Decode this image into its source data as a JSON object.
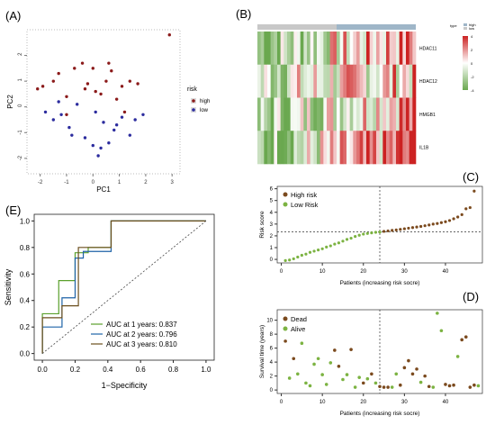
{
  "panel_labels": {
    "a": "(A)",
    "b": "(B)",
    "c": "(C)",
    "d": "(D)",
    "e": "(E)"
  },
  "chart_data": [
    {
      "panel": "(A)",
      "type": "scatter",
      "xlabel": "PC1",
      "ylabel": "PC2",
      "x_ticks": [
        "-2",
        "-1",
        "0",
        "1",
        "2",
        "3"
      ],
      "y_ticks": [
        "-2",
        "-1",
        "0",
        "1",
        "2"
      ],
      "xlim": [
        -2.5,
        3.3
      ],
      "ylim": [
        -2.6,
        3.0
      ],
      "legend": {
        "title": "risk",
        "placement": "right"
      },
      "series": [
        {
          "name": "high",
          "color": "#8b1a1a",
          "x": [
            -2.1,
            -1.9,
            -1.5,
            -1.3,
            -1.0,
            -0.7,
            -0.4,
            -0.2,
            0.0,
            0.3,
            0.5,
            0.7,
            0.9,
            1.1,
            1.4,
            1.7,
            2.9,
            -1.0,
            0.1,
            0.6,
            -0.3,
            1.2
          ],
          "y": [
            0.7,
            0.8,
            1.0,
            1.3,
            0.4,
            1.5,
            1.7,
            0.9,
            1.5,
            0.5,
            1.0,
            1.4,
            0.3,
            0.8,
            1.0,
            0.9,
            2.8,
            -0.3,
            0.6,
            1.7,
            0.7,
            -0.2
          ]
        },
        {
          "name": "low",
          "color": "#2c2c9e",
          "x": [
            -1.8,
            -1.5,
            -1.2,
            -0.9,
            -0.6,
            -0.3,
            0.0,
            0.2,
            0.4,
            0.6,
            0.8,
            1.1,
            1.4,
            1.9,
            -0.8,
            0.3,
            0.9,
            -1.3,
            0.1,
            1.6
          ],
          "y": [
            -0.2,
            -0.5,
            -0.3,
            -0.8,
            0.1,
            -1.2,
            -1.5,
            -1.9,
            -0.6,
            -1.4,
            -0.9,
            -0.4,
            -1.1,
            -0.3,
            -1.1,
            -1.6,
            -0.7,
            0.2,
            -0.2,
            -0.5
          ]
        }
      ]
    },
    {
      "panel": "(B)",
      "type": "heatmap",
      "rows": [
        "HDAC11",
        "HDAC12",
        "HMGB1",
        "IL1B"
      ],
      "legend_labels": [
        "type",
        "high",
        "low"
      ],
      "color_scale": [
        "#6aa84f",
        "#ffffff",
        "#cc2222"
      ],
      "scale_ticks": [
        "4",
        "2",
        "0",
        "-2",
        "-4"
      ]
    },
    {
      "panel": "(C)",
      "type": "scatter",
      "xlabel": "Patients (increasing risk socre)",
      "ylabel": "Risk score",
      "x_ticks": [
        "0",
        "10",
        "20",
        "30",
        "40"
      ],
      "y_ticks": [
        "0",
        "1",
        "2",
        "3",
        "4",
        "5",
        "6"
      ],
      "xlim": [
        -1,
        49
      ],
      "ylim": [
        -0.3,
        6.2
      ],
      "cutoff_x": 24,
      "cutoff_y": 2.35,
      "legend": {
        "placement": "top-left"
      },
      "series": [
        {
          "name": "Low Risk",
          "color": "#7cb342",
          "x": [
            1,
            2,
            3,
            4,
            5,
            6,
            7,
            8,
            9,
            10,
            11,
            12,
            13,
            14,
            15,
            16,
            17,
            18,
            19,
            20,
            21,
            22,
            23,
            24
          ],
          "y": [
            -0.1,
            -0.05,
            0.05,
            0.2,
            0.35,
            0.45,
            0.6,
            0.7,
            0.8,
            0.9,
            1.05,
            1.15,
            1.3,
            1.4,
            1.55,
            1.7,
            1.8,
            1.95,
            2.05,
            2.15,
            2.2,
            2.25,
            2.3,
            2.32
          ]
        },
        {
          "name": "High risk",
          "color": "#7b4a1e",
          "x": [
            25,
            26,
            27,
            28,
            29,
            30,
            31,
            32,
            33,
            34,
            35,
            36,
            37,
            38,
            39,
            40,
            41,
            42,
            43,
            44,
            45,
            46,
            47
          ],
          "y": [
            2.38,
            2.42,
            2.46,
            2.5,
            2.55,
            2.6,
            2.65,
            2.7,
            2.75,
            2.8,
            2.86,
            2.92,
            3.0,
            3.05,
            3.12,
            3.2,
            3.3,
            3.45,
            3.6,
            3.8,
            4.3,
            4.4,
            5.8
          ]
        }
      ]
    },
    {
      "panel": "(D)",
      "type": "scatter",
      "xlabel": "Patients (increasing risk socre)",
      "ylabel": "Survival time (years)",
      "x_ticks": [
        "0",
        "10",
        "20",
        "30",
        "40"
      ],
      "y_ticks": [
        "0",
        "2",
        "4",
        "6",
        "8",
        "10"
      ],
      "xlim": [
        -1,
        49
      ],
      "ylim": [
        -0.5,
        11.5
      ],
      "cutoff_x": 24,
      "legend": {
        "placement": "top-left"
      },
      "series": [
        {
          "name": "Dead",
          "color": "#7b4a1e",
          "x": [
            1,
            3,
            13,
            14,
            17,
            20,
            22,
            24,
            25,
            26,
            29,
            30,
            31,
            32,
            33,
            35,
            36,
            40,
            41,
            42,
            44,
            45,
            46,
            47
          ],
          "y": [
            7.0,
            4.5,
            5.7,
            3.4,
            5.8,
            1.0,
            2.3,
            0.5,
            0.4,
            0.4,
            0.7,
            3.2,
            4.2,
            2.3,
            3.0,
            2.0,
            0.5,
            0.8,
            0.6,
            0.7,
            7.2,
            7.6,
            0.4,
            0.7
          ]
        },
        {
          "name": "Alive",
          "color": "#7cb342",
          "x": [
            2,
            4,
            5,
            6,
            7,
            8,
            9,
            10,
            11,
            12,
            15,
            16,
            18,
            19,
            21,
            23,
            27,
            28,
            34,
            37,
            38,
            39,
            43,
            48
          ],
          "y": [
            1.7,
            2.3,
            6.7,
            1.0,
            0.6,
            3.7,
            4.5,
            2.2,
            0.8,
            3.9,
            1.5,
            2.2,
            0.4,
            1.8,
            1.6,
            1.0,
            0.4,
            2.3,
            1.1,
            0.4,
            11.0,
            8.5,
            4.8,
            0.6
          ]
        }
      ]
    },
    {
      "panel": "(E)",
      "type": "line",
      "xlabel": "1−Specificity",
      "ylabel": "Sensitivity",
      "x_ticks": [
        "0.0",
        "0.2",
        "0.4",
        "0.6",
        "0.8",
        "1.0"
      ],
      "y_ticks": [
        "0.0",
        "0.2",
        "0.4",
        "0.6",
        "0.8",
        "1.0"
      ],
      "xlim": [
        -0.05,
        1.05
      ],
      "ylim": [
        -0.05,
        1.05
      ],
      "legend": {
        "placement": "bottom-right"
      },
      "series": [
        {
          "name": "AUC at 1 years: 0.837",
          "color": "#5aa02c",
          "x": [
            0,
            0,
            0.1,
            0.1,
            0.2,
            0.2,
            0.28,
            0.28,
            0.42,
            0.42,
            1
          ],
          "y": [
            0,
            0.3,
            0.3,
            0.55,
            0.55,
            0.76,
            0.76,
            0.8,
            0.8,
            1,
            1
          ]
        },
        {
          "name": "AUC at 2 years: 0.796",
          "color": "#1e63a8",
          "x": [
            0,
            0,
            0.12,
            0.12,
            0.2,
            0.2,
            0.25,
            0.25,
            0.42,
            0.42,
            1
          ],
          "y": [
            0,
            0.2,
            0.2,
            0.42,
            0.42,
            0.72,
            0.72,
            0.77,
            0.77,
            1,
            1
          ]
        },
        {
          "name": "AUC at 3 years: 0.810",
          "color": "#6b4f1d",
          "x": [
            0,
            0,
            0.12,
            0.12,
            0.22,
            0.22,
            0.42,
            0.42,
            1
          ],
          "y": [
            0,
            0.27,
            0.27,
            0.36,
            0.36,
            0.8,
            0.8,
            1,
            1
          ]
        },
        {
          "name": "",
          "color": "#444444",
          "dashed": true,
          "x": [
            0,
            1
          ],
          "y": [
            0,
            1
          ]
        }
      ]
    }
  ]
}
